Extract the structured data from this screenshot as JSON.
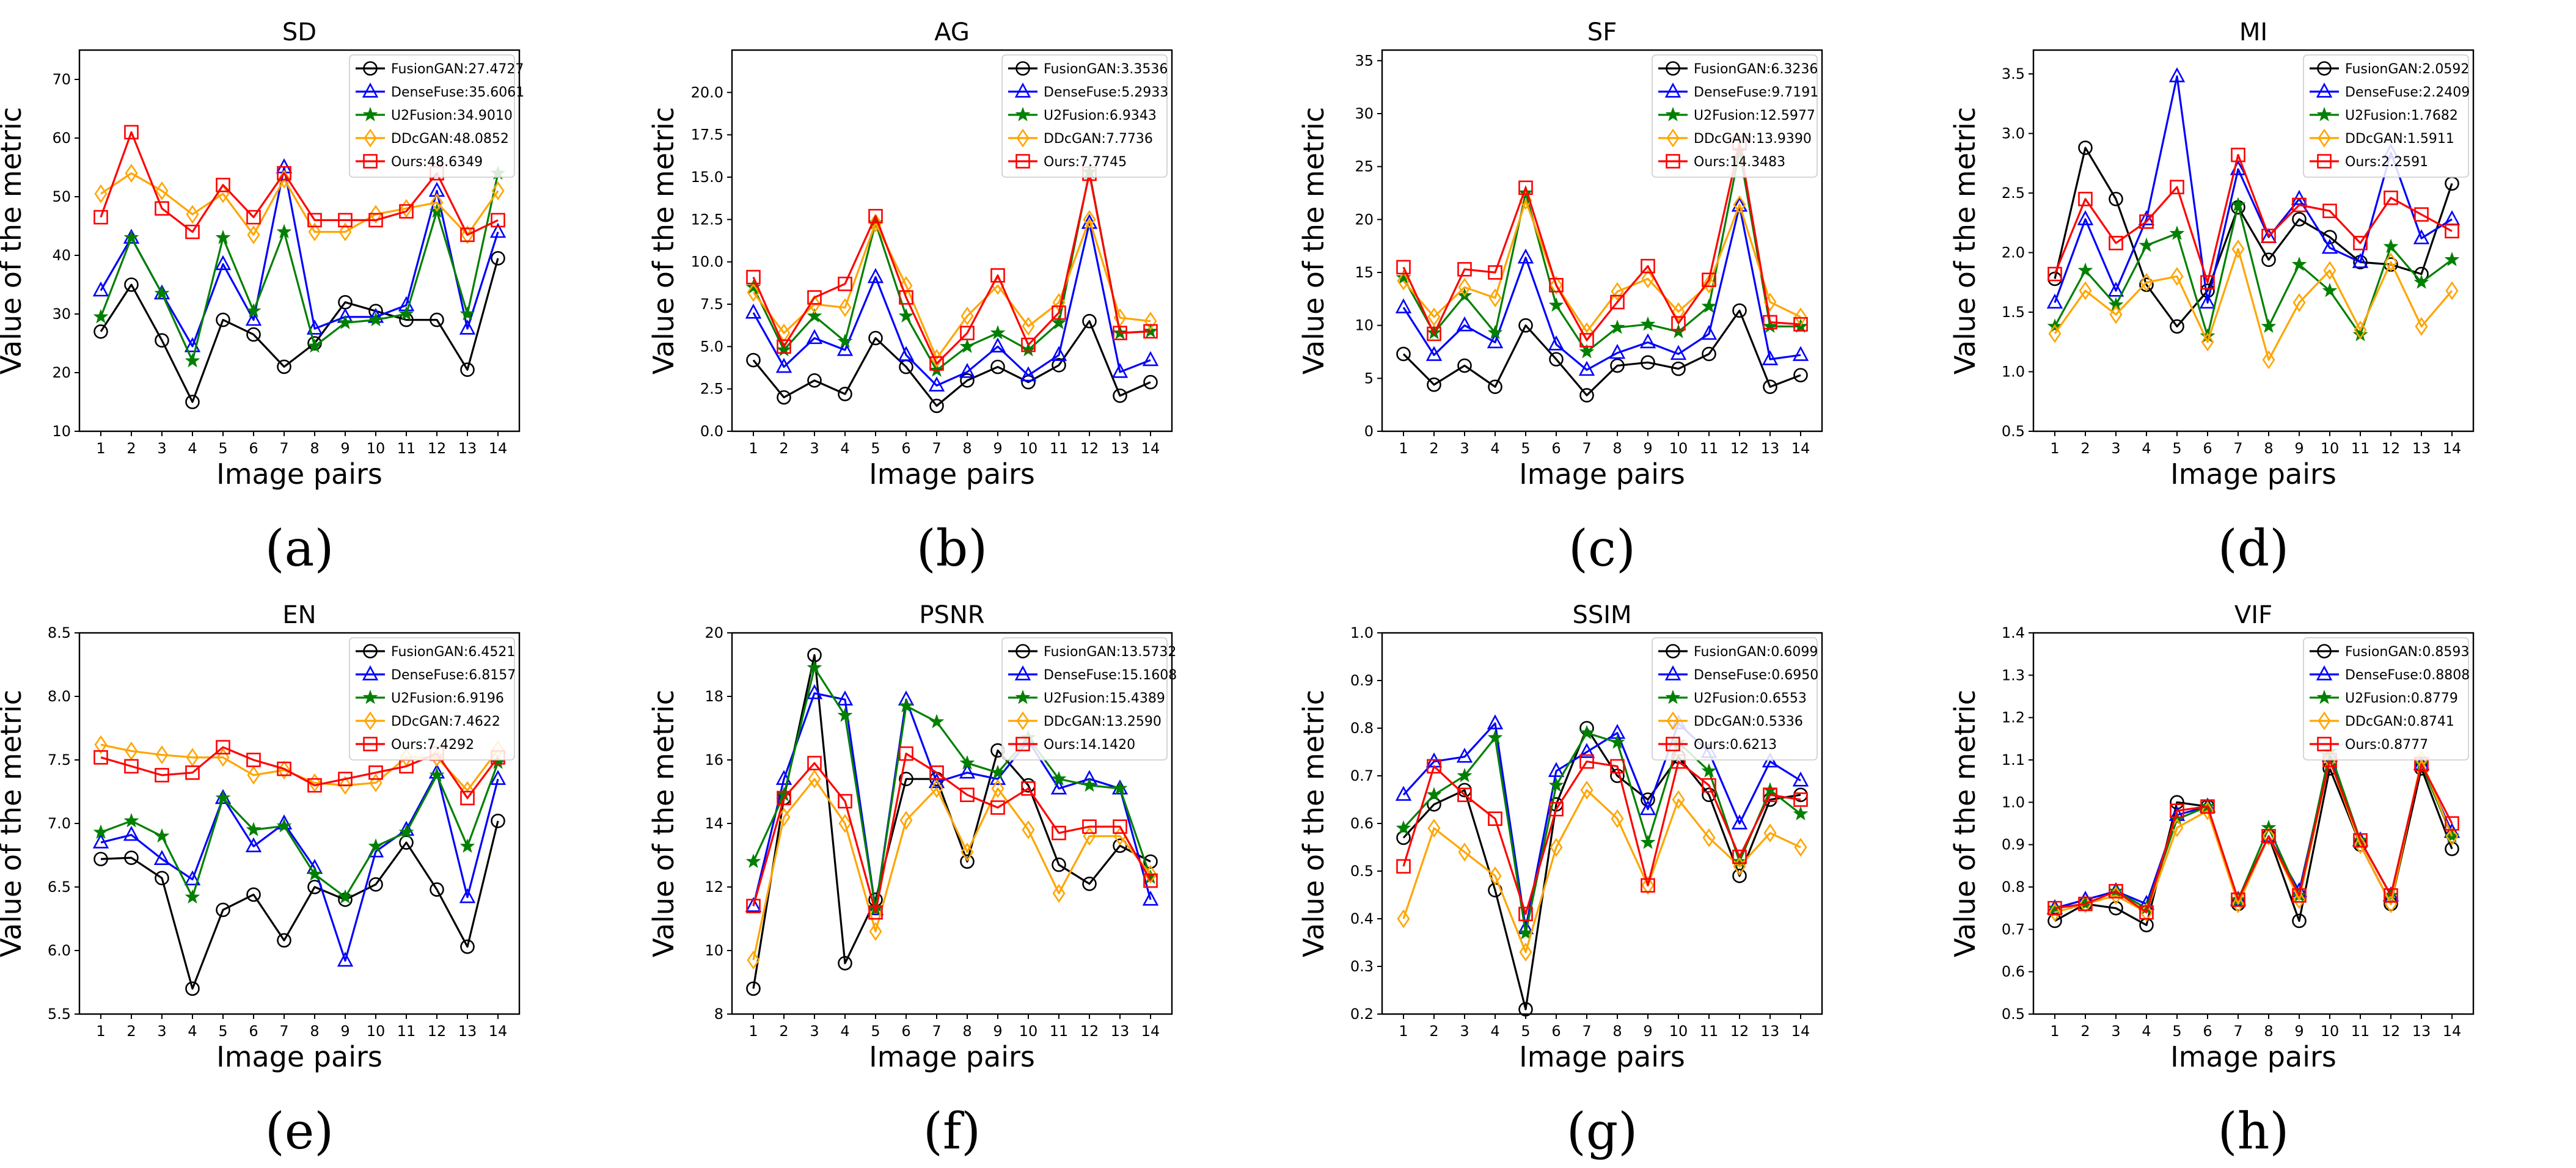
{
  "figure": {
    "ylabel": "Value of the metric",
    "xlabel": "Image pairs",
    "x_ticks": [
      1,
      2,
      3,
      4,
      5,
      6,
      7,
      8,
      9,
      10,
      11,
      12,
      13,
      14
    ]
  },
  "series_styles": [
    {
      "key": "FusionGAN",
      "color": "#000000",
      "marker": "circle"
    },
    {
      "key": "DenseFuse",
      "color": "#0000ff",
      "marker": "triangle"
    },
    {
      "key": "U2Fusion",
      "color": "#008000",
      "marker": "star"
    },
    {
      "key": "DDcGAN",
      "color": "#ffa500",
      "marker": "diamond"
    },
    {
      "key": "Ours",
      "color": "#ff0000",
      "marker": "square"
    }
  ],
  "chart_data": [
    {
      "type": "line",
      "title": "SD",
      "sublabel": "(a)",
      "xlabel": "Image pairs",
      "ylabel": "Value of the metric",
      "x": [
        1,
        2,
        3,
        4,
        5,
        6,
        7,
        8,
        9,
        10,
        11,
        12,
        13,
        14
      ],
      "ylim": [
        10,
        75
      ],
      "yticks": [
        10,
        20,
        30,
        40,
        50,
        60,
        70
      ],
      "ytick_labels": [
        "10",
        "20",
        "30",
        "40",
        "50",
        "60",
        "70"
      ],
      "legend_position": "top-right",
      "series": [
        {
          "name": "FusionGAN:27.4727",
          "values": [
            27,
            35,
            25.5,
            15,
            29,
            26.5,
            21,
            25,
            32,
            30.5,
            29,
            29,
            20.5,
            39.5
          ]
        },
        {
          "name": "DenseFuse:35.6061",
          "values": [
            34,
            43,
            33.5,
            24.5,
            38.5,
            29,
            55,
            27.5,
            29.5,
            29.5,
            31.5,
            51,
            27.5,
            44
          ]
        },
        {
          "name": "U2Fusion:34.9010",
          "values": [
            29.5,
            43,
            33.5,
            22,
            43,
            30.5,
            44,
            24.5,
            28.5,
            29,
            30,
            47.5,
            30,
            54
          ]
        },
        {
          "name": "DDcGAN:48.0852",
          "values": [
            50.5,
            54,
            51,
            47,
            50.5,
            43.5,
            53,
            44,
            44,
            47,
            48,
            49,
            43.5,
            51
          ]
        },
        {
          "name": "Ours:48.6349",
          "values": [
            46.5,
            61,
            48,
            44,
            52,
            46.5,
            54,
            46,
            46,
            46,
            47.5,
            54,
            43.5,
            46
          ]
        }
      ]
    },
    {
      "type": "line",
      "title": "AG",
      "sublabel": "(b)",
      "xlabel": "Image pairs",
      "ylabel": "Value of the metric",
      "x": [
        1,
        2,
        3,
        4,
        5,
        6,
        7,
        8,
        9,
        10,
        11,
        12,
        13,
        14
      ],
      "ylim": [
        0,
        22.5
      ],
      "yticks": [
        0,
        2.5,
        5,
        7.5,
        10,
        12.5,
        15,
        17.5,
        20
      ],
      "ytick_labels": [
        "0.0",
        "2.5",
        "5.0",
        "7.5",
        "10.0",
        "12.5",
        "15.0",
        "17.5",
        "20.0"
      ],
      "legend_position": "top-right",
      "series": [
        {
          "name": "FusionGAN:3.3536",
          "values": [
            4.2,
            2,
            3,
            2.2,
            5.5,
            3.8,
            1.5,
            3,
            3.8,
            2.9,
            3.9,
            6.5,
            2.1,
            2.9
          ]
        },
        {
          "name": "DenseFuse:5.2933",
          "values": [
            7,
            3.8,
            5.5,
            4.8,
            9.1,
            4.5,
            2.7,
            3.5,
            5,
            3.3,
            4.5,
            12.3,
            3.5,
            4.2
          ]
        },
        {
          "name": "U2Fusion:6.9343",
          "values": [
            8.5,
            4.8,
            6.8,
            5.3,
            12.3,
            6.8,
            3.6,
            5,
            5.8,
            4.8,
            6.4,
            15.3,
            5.8,
            5.9
          ]
        },
        {
          "name": "DDcGAN:7.7736",
          "values": [
            8.2,
            5.8,
            7.5,
            7.3,
            12.3,
            8.6,
            4.3,
            6.8,
            8.6,
            6.2,
            7.6,
            12.5,
            6.7,
            6.5
          ]
        },
        {
          "name": "Ours:7.7745",
          "values": [
            9.1,
            5,
            7.9,
            8.7,
            12.7,
            7.9,
            4,
            5.8,
            9.2,
            5.1,
            7,
            15.2,
            5.8,
            5.9
          ]
        }
      ]
    },
    {
      "type": "line",
      "title": "SF",
      "sublabel": "(c)",
      "xlabel": "Image pairs",
      "ylabel": "Value of the metric",
      "x": [
        1,
        2,
        3,
        4,
        5,
        6,
        7,
        8,
        9,
        10,
        11,
        12,
        13,
        14
      ],
      "ylim": [
        0,
        36
      ],
      "yticks": [
        0,
        5,
        10,
        15,
        20,
        25,
        30,
        35
      ],
      "ytick_labels": [
        "0",
        "5",
        "10",
        "15",
        "20",
        "25",
        "30",
        "35"
      ],
      "legend_position": "top-right",
      "series": [
        {
          "name": "FusionGAN:6.3236",
          "values": [
            7.3,
            4.4,
            6.2,
            4.2,
            10,
            6.8,
            3.4,
            6.2,
            6.5,
            5.9,
            7.3,
            11.4,
            4.2,
            5.3
          ]
        },
        {
          "name": "DenseFuse:9.7191",
          "values": [
            11.7,
            7.2,
            10,
            8.4,
            16.4,
            8.2,
            5.8,
            7.4,
            8.4,
            7.3,
            9.2,
            21.3,
            6.8,
            7.2
          ]
        },
        {
          "name": "U2Fusion:12.5977",
          "values": [
            14.5,
            9.3,
            12.8,
            9.3,
            22.5,
            11.9,
            7.5,
            9.8,
            10.1,
            9.4,
            11.8,
            26.5,
            9.9,
            9.9
          ]
        },
        {
          "name": "DDcGAN:13.9390",
          "values": [
            14.2,
            10.8,
            13.6,
            12.6,
            21.8,
            13.8,
            9.4,
            13.2,
            14.4,
            11.3,
            13.9,
            21.4,
            12.2,
            10.8
          ]
        },
        {
          "name": "Ours:14.3483",
          "values": [
            15.5,
            9.2,
            15.3,
            15,
            23,
            13.8,
            8.6,
            12.2,
            15.6,
            10.2,
            14.3,
            27.2,
            10.3,
            10.1
          ]
        }
      ]
    },
    {
      "type": "line",
      "title": "MI",
      "sublabel": "(d)",
      "xlabel": "Image pairs",
      "ylabel": "Value of the metric",
      "x": [
        1,
        2,
        3,
        4,
        5,
        6,
        7,
        8,
        9,
        10,
        11,
        12,
        13,
        14
      ],
      "ylim": [
        0.5,
        3.7
      ],
      "yticks": [
        0.5,
        1,
        1.5,
        2,
        2.5,
        3,
        3.5
      ],
      "ytick_labels": [
        "0.5",
        "1.0",
        "1.5",
        "2.0",
        "2.5",
        "3.0",
        "3.5"
      ],
      "legend_position": "top-right",
      "series": [
        {
          "name": "FusionGAN:2.0592",
          "values": [
            1.78,
            2.88,
            2.45,
            1.73,
            1.38,
            1.68,
            2.38,
            1.94,
            2.28,
            2.13,
            1.92,
            1.9,
            1.82,
            2.58
          ]
        },
        {
          "name": "DenseFuse:2.2409",
          "values": [
            1.58,
            2.28,
            1.68,
            2.28,
            3.48,
            1.58,
            2.7,
            2.13,
            2.45,
            2.04,
            1.92,
            2.84,
            2.12,
            2.28
          ]
        },
        {
          "name": "U2Fusion:1.7682",
          "values": [
            1.38,
            1.85,
            1.56,
            2.06,
            2.16,
            1.3,
            2.4,
            1.38,
            1.9,
            1.68,
            1.31,
            2.05,
            1.75,
            1.94
          ]
        },
        {
          "name": "DDcGAN:1.5911",
          "values": [
            1.32,
            1.68,
            1.48,
            1.75,
            1.8,
            1.25,
            2.03,
            1.1,
            1.58,
            1.85,
            1.35,
            1.92,
            1.38,
            1.68
          ]
        },
        {
          "name": "Ours:2.2591",
          "values": [
            1.82,
            2.45,
            2.08,
            2.26,
            2.55,
            1.75,
            2.82,
            2.14,
            2.4,
            2.35,
            2.08,
            2.46,
            2.32,
            2.18
          ]
        }
      ]
    },
    {
      "type": "line",
      "title": "EN",
      "sublabel": "(e)",
      "xlabel": "Image pairs",
      "ylabel": "Value of the metric",
      "x": [
        1,
        2,
        3,
        4,
        5,
        6,
        7,
        8,
        9,
        10,
        11,
        12,
        13,
        14
      ],
      "ylim": [
        5.5,
        8.5
      ],
      "yticks": [
        5.5,
        6,
        6.5,
        7,
        7.5,
        8,
        8.5
      ],
      "ytick_labels": [
        "5.5",
        "6.0",
        "6.5",
        "7.0",
        "7.5",
        "8.0",
        "8.5"
      ],
      "legend_position": "top-right",
      "series": [
        {
          "name": "FusionGAN:6.4521",
          "values": [
            6.72,
            6.73,
            6.57,
            5.7,
            6.32,
            6.44,
            6.08,
            6.5,
            6.4,
            6.52,
            6.85,
            6.48,
            6.03,
            7.02
          ]
        },
        {
          "name": "DenseFuse:6.8157",
          "values": [
            6.85,
            6.91,
            6.72,
            6.56,
            7.2,
            6.82,
            7,
            6.65,
            5.92,
            6.78,
            6.95,
            7.4,
            6.42,
            7.35
          ]
        },
        {
          "name": "U2Fusion:6.9196",
          "values": [
            6.93,
            7.02,
            6.9,
            6.42,
            7.2,
            6.95,
            6.98,
            6.6,
            6.42,
            6.82,
            6.93,
            7.38,
            6.82,
            7.48
          ]
        },
        {
          "name": "DDcGAN:7.4622",
          "values": [
            7.62,
            7.57,
            7.54,
            7.52,
            7.52,
            7.38,
            7.42,
            7.32,
            7.3,
            7.32,
            7.52,
            7.52,
            7.26,
            7.58
          ]
        },
        {
          "name": "Ours:7.4292",
          "values": [
            7.52,
            7.45,
            7.38,
            7.4,
            7.6,
            7.5,
            7.43,
            7.3,
            7.35,
            7.4,
            7.45,
            7.55,
            7.2,
            7.52
          ]
        }
      ]
    },
    {
      "type": "line",
      "title": "PSNR",
      "sublabel": "(f)",
      "xlabel": "Image pairs",
      "ylabel": "Value of the metric",
      "x": [
        1,
        2,
        3,
        4,
        5,
        6,
        7,
        8,
        9,
        10,
        11,
        12,
        13,
        14
      ],
      "ylim": [
        8,
        20
      ],
      "yticks": [
        8,
        10,
        12,
        14,
        16,
        18,
        20
      ],
      "ytick_labels": [
        "8",
        "10",
        "12",
        "14",
        "16",
        "18",
        "20"
      ],
      "legend_position": "top-right",
      "series": [
        {
          "name": "FusionGAN:13.5732",
          "values": [
            8.8,
            14.8,
            19.3,
            9.6,
            11.6,
            15.4,
            15.4,
            12.8,
            16.3,
            15.2,
            12.7,
            12.1,
            13.3,
            12.8
          ]
        },
        {
          "name": "DenseFuse:15.1608",
          "values": [
            11.4,
            15.4,
            18.1,
            17.9,
            11.3,
            17.9,
            15.3,
            15.6,
            15.4,
            16.6,
            15.1,
            15.4,
            15.1,
            11.6
          ]
        },
        {
          "name": "U2Fusion:15.4389",
          "values": [
            12.8,
            14.9,
            18.9,
            17.4,
            11.3,
            17.7,
            17.2,
            15.9,
            15.6,
            16.7,
            15.4,
            15.2,
            15.1,
            12.3
          ]
        },
        {
          "name": "DDcGAN:13.2590",
          "values": [
            9.7,
            14.2,
            15.4,
            14,
            10.6,
            14.1,
            15.1,
            13.1,
            15.1,
            13.8,
            11.8,
            13.6,
            13.6,
            12.4
          ]
        },
        {
          "name": "Ours:14.1420",
          "values": [
            11.4,
            14.8,
            15.9,
            14.7,
            11.2,
            16.2,
            15.6,
            14.9,
            14.5,
            15.1,
            13.7,
            13.9,
            13.9,
            12.2
          ]
        }
      ]
    },
    {
      "type": "line",
      "title": "SSIM",
      "sublabel": "(g)",
      "xlabel": "Image pairs",
      "ylabel": "Value of the metric",
      "x": [
        1,
        2,
        3,
        4,
        5,
        6,
        7,
        8,
        9,
        10,
        11,
        12,
        13,
        14
      ],
      "ylim": [
        0.2,
        1.0
      ],
      "yticks": [
        0.2,
        0.3,
        0.4,
        0.5,
        0.6,
        0.7,
        0.8,
        0.9,
        1.0
      ],
      "ytick_labels": [
        "0.2",
        "0.3",
        "0.4",
        "0.5",
        "0.6",
        "0.7",
        "0.8",
        "0.9",
        "1.0"
      ],
      "legend_position": "top-right",
      "series": [
        {
          "name": "FusionGAN:0.6099",
          "values": [
            0.57,
            0.64,
            0.67,
            0.46,
            0.21,
            0.64,
            0.8,
            0.7,
            0.65,
            0.74,
            0.66,
            0.49,
            0.65,
            0.66
          ]
        },
        {
          "name": "DenseFuse:0.6950",
          "values": [
            0.66,
            0.73,
            0.74,
            0.81,
            0.38,
            0.71,
            0.75,
            0.79,
            0.63,
            0.81,
            0.75,
            0.6,
            0.73,
            0.69
          ]
        },
        {
          "name": "U2Fusion:0.6553",
          "values": [
            0.59,
            0.66,
            0.7,
            0.78,
            0.37,
            0.68,
            0.79,
            0.77,
            0.56,
            0.77,
            0.71,
            0.52,
            0.67,
            0.62
          ]
        },
        {
          "name": "DDcGAN:0.5336",
          "values": [
            0.4,
            0.59,
            0.54,
            0.49,
            0.33,
            0.55,
            0.67,
            0.61,
            0.47,
            0.65,
            0.57,
            0.51,
            0.58,
            0.55
          ]
        },
        {
          "name": "Ours:0.6213",
          "values": [
            0.51,
            0.72,
            0.66,
            0.61,
            0.41,
            0.63,
            0.73,
            0.72,
            0.47,
            0.73,
            0.68,
            0.53,
            0.66,
            0.65
          ]
        }
      ]
    },
    {
      "type": "line",
      "title": "VIF",
      "sublabel": "(h)",
      "xlabel": "Image pairs",
      "ylabel": "Value of the metric",
      "x": [
        1,
        2,
        3,
        4,
        5,
        6,
        7,
        8,
        9,
        10,
        11,
        12,
        13,
        14
      ],
      "ylim": [
        0.5,
        1.4
      ],
      "yticks": [
        0.5,
        0.6,
        0.7,
        0.8,
        0.9,
        1.0,
        1.1,
        1.2,
        1.3,
        1.4
      ],
      "ytick_labels": [
        "0.5",
        "0.6",
        "0.7",
        "0.8",
        "0.9",
        "1.0",
        "1.1",
        "1.2",
        "1.3",
        "1.4"
      ],
      "legend_position": "top-right",
      "series": [
        {
          "name": "FusionGAN:0.8593",
          "values": [
            0.72,
            0.76,
            0.75,
            0.71,
            1.0,
            0.99,
            0.76,
            0.92,
            0.72,
            1.08,
            0.9,
            0.76,
            1.08,
            0.89
          ]
        },
        {
          "name": "DenseFuse:0.8808",
          "values": [
            0.75,
            0.77,
            0.79,
            0.76,
            0.97,
            0.99,
            0.77,
            0.92,
            0.79,
            1.11,
            0.91,
            0.78,
            1.09,
            0.93
          ]
        },
        {
          "name": "U2Fusion:0.8779",
          "values": [
            0.75,
            0.76,
            0.79,
            0.75,
            0.96,
            0.99,
            0.77,
            0.94,
            0.78,
            1.12,
            0.91,
            0.78,
            1.09,
            0.92
          ]
        },
        {
          "name": "DDcGAN:0.8741",
          "values": [
            0.74,
            0.76,
            0.78,
            0.74,
            0.94,
            0.98,
            0.76,
            0.92,
            0.77,
            1.1,
            0.9,
            0.76,
            1.1,
            0.92
          ]
        },
        {
          "name": "Ours:0.8777",
          "values": [
            0.75,
            0.76,
            0.79,
            0.74,
            0.98,
            0.99,
            0.77,
            0.92,
            0.78,
            1.1,
            0.91,
            0.78,
            1.09,
            0.95
          ]
        }
      ]
    }
  ]
}
